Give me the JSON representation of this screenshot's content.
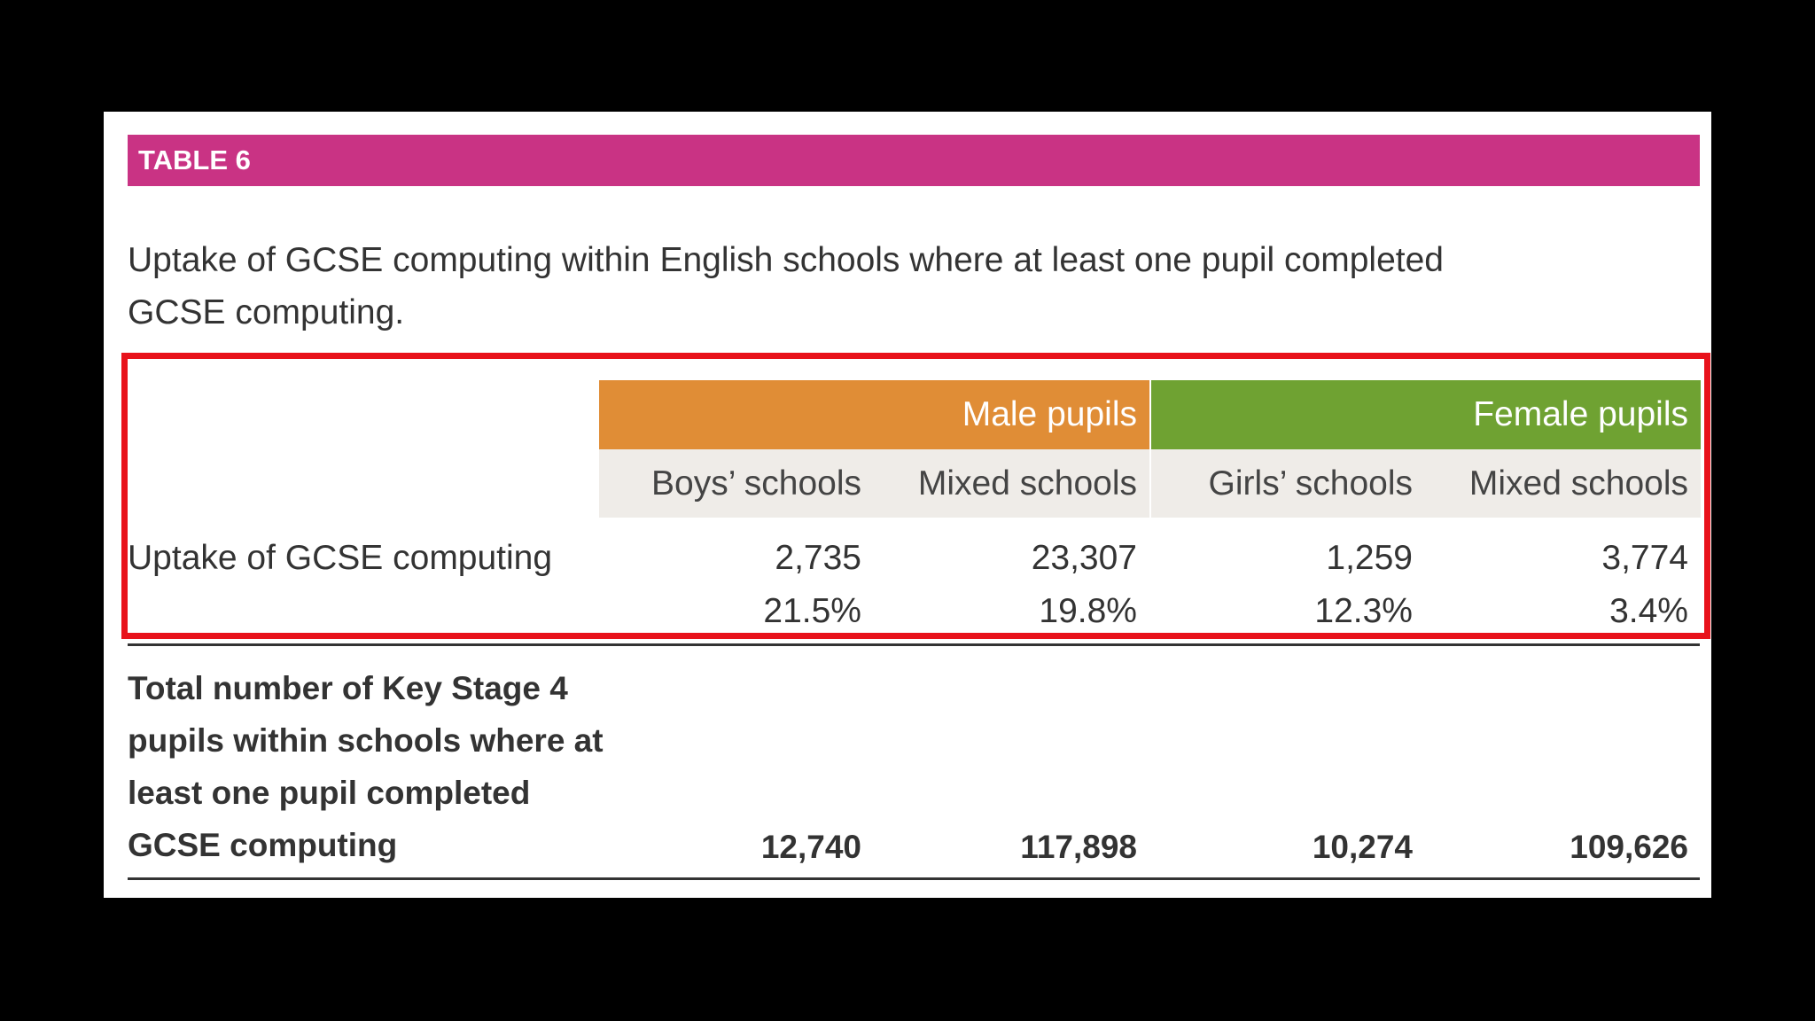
{
  "table": {
    "banner": "TABLE 6",
    "caption": "Uptake of GCSE computing within English schools where at least one pupil completed GCSE computing.",
    "groups": [
      "Male pupils",
      "Female pupils"
    ],
    "columns": [
      "Boys’ schools",
      "Mixed schools",
      "Girls’ schools",
      "Mixed schools"
    ],
    "uptake": {
      "label": "Uptake of GCSE computing",
      "counts": [
        "2,735",
        "23,307",
        "1,259",
        "3,774"
      ],
      "percents": [
        "21.5%",
        "19.8%",
        "12.3%",
        "3.4%"
      ]
    },
    "total": {
      "label": "Total number of Key Stage 4 pupils within schools where at least one pupil completed GCSE computing",
      "values": [
        "12,740",
        "117,898",
        "10,274",
        "109,626"
      ]
    }
  },
  "colors": {
    "banner": "#c93384",
    "male": "#e08d36",
    "female": "#6fa232",
    "subheader": "#efece8",
    "highlight": "#e8121b"
  }
}
